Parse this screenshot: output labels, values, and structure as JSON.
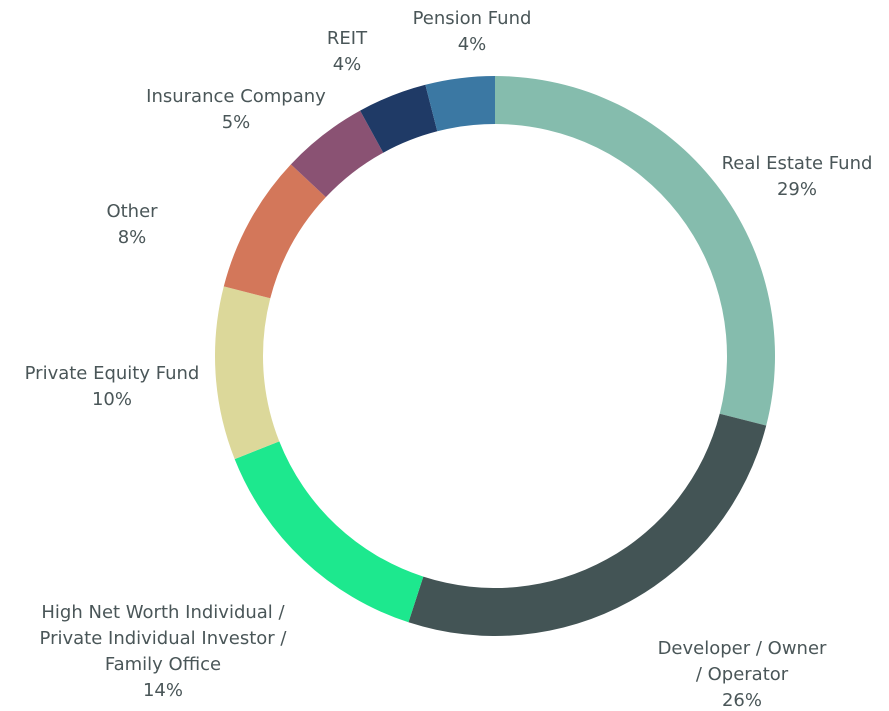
{
  "chart_data": {
    "type": "donut",
    "categories": [
      [
        "Real Estate Fund"
      ],
      [
        "Developer / Owner",
        "/ Operator"
      ],
      [
        "High Net Worth Individual /",
        "Private Individual Investor /",
        "Family Office"
      ],
      [
        "Private Equity Fund"
      ],
      [
        "Other"
      ],
      [
        "Insurance Company"
      ],
      [
        "REIT"
      ],
      [
        "Pension Fund"
      ]
    ],
    "values": [
      29,
      26,
      14,
      10,
      8,
      5,
      4,
      4
    ],
    "value_labels": [
      "29%",
      "26%",
      "14%",
      "10%",
      "8%",
      "5%",
      "4%",
      "4%"
    ],
    "colors": [
      "#85bcad",
      "#435455",
      "#1de88e",
      "#dcd89a",
      "#d3775a",
      "#8a5273",
      "#1f3a66",
      "#3b78a3"
    ]
  }
}
